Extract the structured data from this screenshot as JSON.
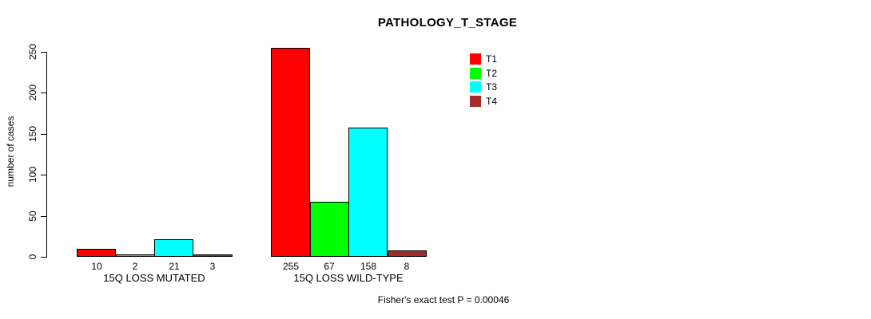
{
  "chart_data": {
    "type": "bar",
    "title": "PATHOLOGY_T_STAGE",
    "xlabel": "",
    "ylabel": "number of cases",
    "ylim": [
      0,
      250
    ],
    "yticks": [
      0,
      50,
      100,
      150,
      200,
      250
    ],
    "grid": false,
    "legend_position": "top-right",
    "categories": [
      "15Q LOSS MUTATED",
      "15Q LOSS WILD-TYPE"
    ],
    "series": [
      {
        "name": "T1",
        "color": "#FF0000",
        "values": [
          10,
          255
        ]
      },
      {
        "name": "T2",
        "color": "#00FF00",
        "values": [
          2,
          67
        ]
      },
      {
        "name": "T3",
        "color": "#00FFFF",
        "values": [
          21,
          158
        ]
      },
      {
        "name": "T4",
        "color": "#A52A2A",
        "values": [
          3,
          8
        ]
      }
    ],
    "bar_value_labels": [
      [
        10,
        2,
        21,
        3
      ],
      [
        255,
        67,
        158,
        8
      ]
    ],
    "annotation": "Fisher's exact test P = 0.00046"
  }
}
